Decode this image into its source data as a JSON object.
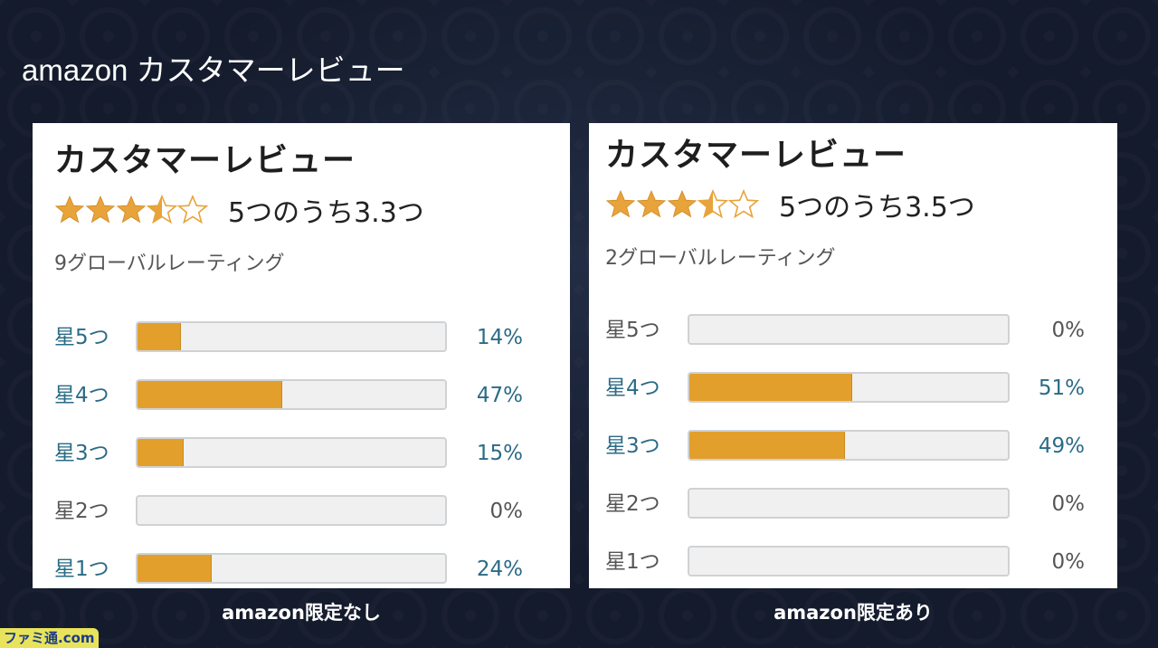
{
  "slide": {
    "title": "amazon カスタマーレビュー"
  },
  "colors": {
    "bar_fill": "#e39f2c",
    "bar_track": "#f0f0f0",
    "link_text": "#2b6b86",
    "plain_text": "#555555",
    "star": "#e8a33a"
  },
  "panels": [
    {
      "heading": "カスタマーレビュー",
      "average_text": "5つのうち3.3つ",
      "stars": [
        "star-full-icon",
        "star-full-icon",
        "star-full-icon",
        "star-half-icon",
        "star-empty-icon"
      ],
      "total_text": "9グローバルレーティング",
      "rows": [
        {
          "label": "星5つ",
          "percent_text": "14%",
          "percent": 14
        },
        {
          "label": "星4つ",
          "percent_text": "47%",
          "percent": 47
        },
        {
          "label": "星3つ",
          "percent_text": "15%",
          "percent": 15
        },
        {
          "label": "星2つ",
          "percent_text": "0%",
          "percent": 0
        },
        {
          "label": "星1つ",
          "percent_text": "24%",
          "percent": 24
        }
      ],
      "caption": "amazon限定なし"
    },
    {
      "heading": "カスタマーレビュー",
      "average_text": "5つのうち3.5つ",
      "stars": [
        "star-full-icon",
        "star-full-icon",
        "star-full-icon",
        "star-half-icon",
        "star-empty-icon"
      ],
      "total_text": "2グローバルレーティング",
      "rows": [
        {
          "label": "星5つ",
          "percent_text": "0%",
          "percent": 0
        },
        {
          "label": "星4つ",
          "percent_text": "51%",
          "percent": 51
        },
        {
          "label": "星3つ",
          "percent_text": "49%",
          "percent": 49
        },
        {
          "label": "星2つ",
          "percent_text": "0%",
          "percent": 0
        },
        {
          "label": "星1つ",
          "percent_text": "0%",
          "percent": 0
        }
      ],
      "caption": "amazon限定あり"
    }
  ],
  "watermark": "ファミ通.com"
}
